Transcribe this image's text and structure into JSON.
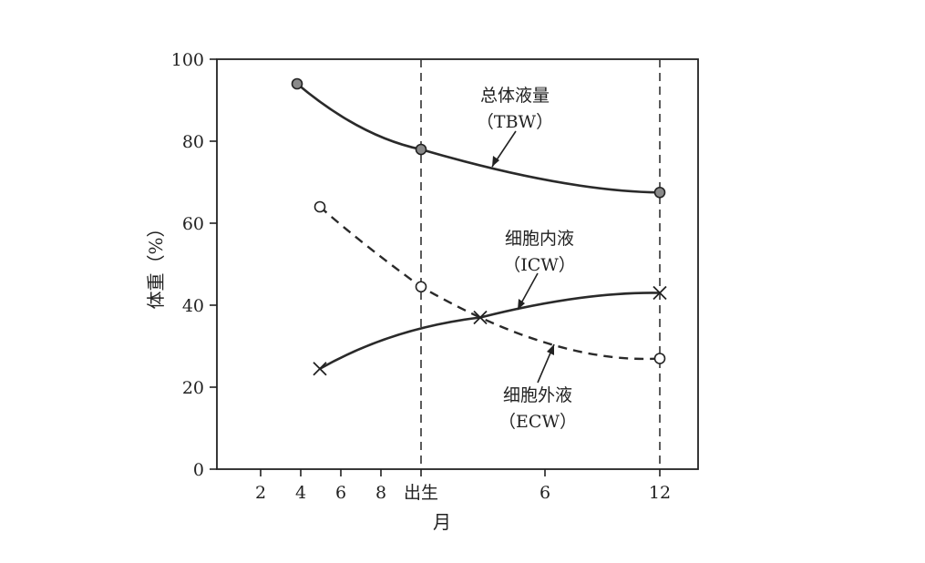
{
  "chart_data": {
    "type": "line",
    "title": "",
    "xlabel": "月",
    "ylabel": "体重（%）",
    "ylim": [
      0,
      100
    ],
    "yticks": [
      "0",
      "20",
      "40",
      "60",
      "80",
      "100"
    ],
    "xticks": [
      "2",
      "4",
      "6",
      "8",
      "出生",
      "6",
      "12"
    ],
    "reference_lines": [
      "出生",
      "12"
    ],
    "series": [
      {
        "name": "总体液量（TBW）",
        "marker": "filled-circle",
        "style": "solid",
        "points": [
          {
            "x": "4",
            "y": 94
          },
          {
            "x": "出生",
            "y": 78
          },
          {
            "x": "12",
            "y": 67.5
          }
        ]
      },
      {
        "name": "细胞外液（ECW）",
        "marker": "open-circle",
        "style": "dashed",
        "points": [
          {
            "x": "5",
            "y": 64
          },
          {
            "x": "出生",
            "y": 44.5
          },
          {
            "x": "12",
            "y": 27
          }
        ]
      },
      {
        "name": "细胞内液（ICW）",
        "marker": "cross",
        "style": "solid",
        "points": [
          {
            "x": "5",
            "y": 24.5
          },
          {
            "x": "3",
            "y": 37
          },
          {
            "x": "12",
            "y": 43
          }
        ]
      }
    ],
    "annotations": [
      {
        "line1": "总体液量",
        "line2": "（TBW）"
      },
      {
        "line1": "细胞内液",
        "line2": "（ICW）"
      },
      {
        "line1": "细胞外液",
        "line2": "（ECW）"
      }
    ]
  }
}
